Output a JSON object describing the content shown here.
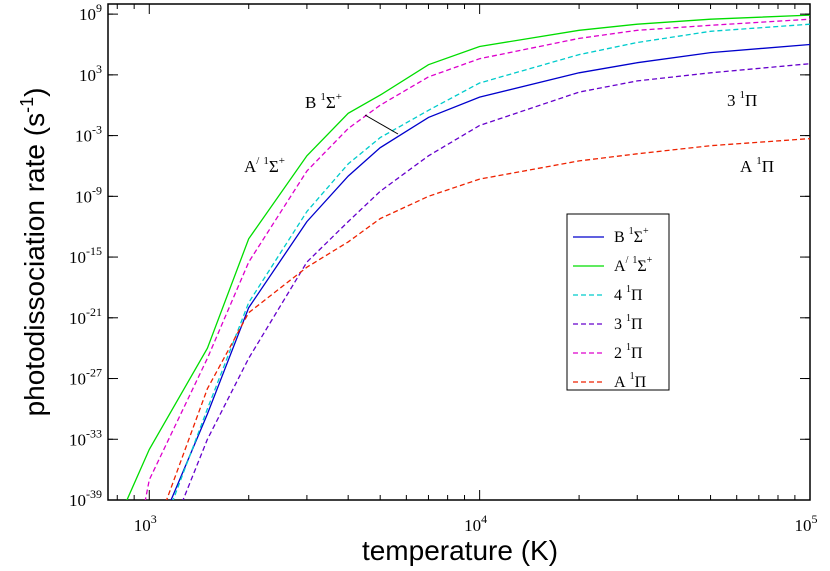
{
  "chart_data": {
    "type": "line",
    "xlabel": "temperature (K)",
    "ylabel": "photodissociation rate (s",
    "ylabel_sup": "-1",
    "ylabel_close": ")",
    "xscale": "log",
    "yscale": "log",
    "xlim": [
      750,
      100000
    ],
    "ylim": [
      1e-39,
      10000000000.0
    ],
    "x_ticks": [
      {
        "value": 1000,
        "base": "10",
        "exp": "3"
      },
      {
        "value": 10000,
        "base": "10",
        "exp": "4"
      },
      {
        "value": 100000,
        "base": "10",
        "exp": "5"
      }
    ],
    "y_ticks": [
      {
        "value": 1000000000.0,
        "base": "10",
        "exp": "9"
      },
      {
        "value": 1000.0,
        "base": "10",
        "exp": "3"
      },
      {
        "value": 0.001,
        "base": "10",
        "exp": "-3"
      },
      {
        "value": 1e-09,
        "base": "10",
        "exp": "-9"
      },
      {
        "value": 1e-15,
        "base": "10",
        "exp": "-15"
      },
      {
        "value": 1e-21,
        "base": "10",
        "exp": "-21"
      },
      {
        "value": 1e-27,
        "base": "10",
        "exp": "-27"
      },
      {
        "value": 1e-33,
        "base": "10",
        "exp": "-33"
      },
      {
        "value": 1e-39,
        "base": "10",
        "exp": "-39"
      }
    ],
    "legend_position": "right-center",
    "series": [
      {
        "id": "B1Sigma",
        "name": "B",
        "sup1": "1",
        "sym": "Σ",
        "sup2": "+",
        "color": "#0000cc",
        "dash": "solid",
        "x": [
          1130,
          1500,
          2000,
          3000,
          4000,
          5000,
          7000,
          10000,
          20000,
          30000,
          50000,
          100000
        ],
        "log10y": [
          -40,
          -30.5,
          -20,
          -11.5,
          -7,
          -4.2,
          -1.2,
          0.8,
          3.2,
          4.2,
          5.2,
          6.0
        ]
      },
      {
        "id": "Aprime1Sigma",
        "name": "A",
        "prime": "/",
        "sup1": "1",
        "sym": "Σ",
        "sup2": "+",
        "color": "#00dd00",
        "dash": "solid",
        "x": [
          830,
          1000,
          1500,
          2000,
          3000,
          4000,
          5000,
          7000,
          10000,
          20000,
          30000,
          50000,
          100000
        ],
        "log10y": [
          -40,
          -34,
          -24,
          -13.2,
          -5,
          -0.8,
          1.0,
          4.0,
          5.8,
          7.4,
          8.0,
          8.5,
          8.9
        ]
      },
      {
        "id": "4_1Pi",
        "name": "4",
        "sup1": "1",
        "sym": "Π",
        "sup2": "",
        "color": "#00cccc",
        "dash": "dashed",
        "x": [
          1150,
          1500,
          2000,
          3000,
          4000,
          5000,
          7000,
          10000,
          20000,
          30000,
          50000,
          100000
        ],
        "log10y": [
          -40,
          -30,
          -19.5,
          -10.5,
          -5.8,
          -3.2,
          -0.5,
          2.2,
          5.0,
          6.2,
          7.3,
          8.0
        ]
      },
      {
        "id": "3_1Pi",
        "name": "3",
        "sup1": "1",
        "sym": "Π",
        "sup2": "",
        "color": "#6600cc",
        "dash": "dashed",
        "x": [
          1230,
          1500,
          2000,
          3000,
          4000,
          5000,
          7000,
          10000,
          20000,
          30000,
          50000,
          100000
        ],
        "log10y": [
          -40,
          -33,
          -25,
          -15.5,
          -11.5,
          -8.5,
          -5,
          -2,
          1.3,
          2.4,
          3.2,
          4.1
        ]
      },
      {
        "id": "2_1Pi",
        "name": "2",
        "sup1": "1",
        "sym": "Π",
        "sup2": "",
        "color": "#dd00cc",
        "dash": "dashed",
        "x": [
          960,
          1000,
          1500,
          2000,
          3000,
          4000,
          5000,
          7000,
          10000,
          20000,
          30000,
          50000,
          100000
        ],
        "log10y": [
          -40,
          -37,
          -25,
          -15.5,
          -6.5,
          -2.3,
          0,
          2.8,
          4.6,
          6.6,
          7.4,
          7.9,
          8.5
        ]
      },
      {
        "id": "A1Pi",
        "name": "A",
        "sup1": "1",
        "sym": "Π",
        "sup2": "",
        "color": "#ee2200",
        "dash": "dashed",
        "x": [
          1100,
          1500,
          2000,
          3000,
          4000,
          5000,
          7000,
          10000,
          20000,
          30000,
          50000,
          100000
        ],
        "log10y": [
          -40,
          -28,
          -20.5,
          -16,
          -13.5,
          -11.2,
          -9,
          -7.3,
          -5.5,
          -4.8,
          -4.0,
          -3.3
        ]
      }
    ],
    "annotations": [
      {
        "series": "B1Sigma",
        "name": "B",
        "sup1": "1",
        "sym": "Σ",
        "sup2": "+"
      },
      {
        "series": "Aprime1Sigma",
        "name": "A",
        "prime": "/",
        "sup1": "1",
        "sym": "Σ",
        "sup2": "+"
      },
      {
        "series": "3_1Pi",
        "name": "3",
        "sup1": "1",
        "sym": "Π",
        "sup2": ""
      },
      {
        "series": "A1Pi",
        "name": "A",
        "sup1": "1",
        "sym": "Π",
        "sup2": ""
      }
    ]
  }
}
